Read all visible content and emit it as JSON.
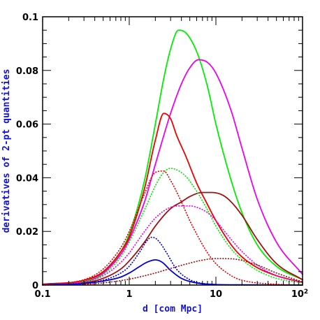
{
  "chart_data": {
    "type": "line",
    "xlabel": "d [com Mpc]",
    "ylabel": "derivatives of 2-pt quantities",
    "label_color": "#1010e0",
    "xscale": "log",
    "xlim": [
      0.1,
      100
    ],
    "ylim": [
      0,
      0.1
    ],
    "xticks": [
      {
        "value": 0.1,
        "label": "0.1"
      },
      {
        "value": 1,
        "label": "1"
      },
      {
        "value": 10,
        "label": "10"
      },
      {
        "value": 100,
        "label": "10",
        "sup": "2"
      }
    ],
    "yticks": [
      {
        "value": 0,
        "label": "0"
      },
      {
        "value": 0.02,
        "label": "0.02"
      },
      {
        "value": 0.04,
        "label": "0.04"
      },
      {
        "value": 0.06,
        "label": "0.06"
      },
      {
        "value": 0.08,
        "label": "0.08"
      },
      {
        "value": 0.1,
        "label": "0.1"
      }
    ],
    "grid": false,
    "series": [
      {
        "color": "#00ee00",
        "style": "solid",
        "x": [
          0.1,
          0.3,
          0.5,
          0.8,
          1.0,
          1.5,
          2.0,
          2.5,
          3.0,
          3.7,
          4.5,
          6.0,
          8.0,
          10,
          15,
          20,
          30,
          50,
          100
        ],
        "y": [
          0.0002,
          0.0012,
          0.0042,
          0.0125,
          0.019,
          0.039,
          0.06,
          0.077,
          0.088,
          0.095,
          0.094,
          0.087,
          0.074,
          0.06,
          0.039,
          0.027,
          0.015,
          0.007,
          0.002
        ]
      },
      {
        "color": "#ee00ee",
        "style": "solid",
        "x": [
          0.1,
          0.3,
          0.5,
          0.8,
          1.0,
          1.5,
          2.0,
          3.0,
          4.0,
          5.0,
          6.3,
          8.0,
          10,
          15,
          20,
          30,
          50,
          100
        ],
        "y": [
          0.0003,
          0.0015,
          0.0045,
          0.0115,
          0.017,
          0.031,
          0.045,
          0.064,
          0.075,
          0.081,
          0.084,
          0.083,
          0.079,
          0.065,
          0.051,
          0.032,
          0.016,
          0.004
        ]
      },
      {
        "color": "#ee0000",
        "style": "solid",
        "x": [
          0.1,
          0.3,
          0.5,
          0.8,
          1.0,
          1.5,
          2.0,
          2.5,
          3.0,
          3.5,
          4.5,
          6.0,
          8.0,
          10,
          15,
          20,
          30,
          50,
          100
        ],
        "y": [
          0.0003,
          0.0018,
          0.005,
          0.0125,
          0.018,
          0.036,
          0.054,
          0.064,
          0.062,
          0.056,
          0.048,
          0.038,
          0.03,
          0.024,
          0.015,
          0.0105,
          0.0065,
          0.0035,
          0.001
        ]
      },
      {
        "color": "#a01010",
        "style": "solid",
        "x": [
          0.1,
          0.3,
          0.5,
          0.8,
          1.0,
          1.5,
          2.0,
          3.0,
          4.0,
          5.0,
          7.0,
          9.0,
          12,
          15,
          20,
          30,
          50,
          100
        ],
        "y": [
          0.0001,
          0.0008,
          0.0025,
          0.006,
          0.009,
          0.016,
          0.022,
          0.0285,
          0.031,
          0.033,
          0.0345,
          0.0345,
          0.0335,
          0.031,
          0.026,
          0.017,
          0.008,
          0.002
        ]
      },
      {
        "color": "#0000dd",
        "style": "solid",
        "x": [
          0.1,
          0.3,
          0.5,
          0.8,
          1.0,
          1.3,
          1.6,
          2.0,
          2.4,
          3.0,
          4.0,
          6.0,
          10,
          20,
          100
        ],
        "y": [
          0.0001,
          0.0006,
          0.0015,
          0.003,
          0.0045,
          0.0068,
          0.0085,
          0.0094,
          0.0085,
          0.0055,
          0.0025,
          0.0008,
          0.0002,
          0.0001,
          0.0
        ]
      },
      {
        "color": "#00ee00",
        "style": "dotted",
        "x": [
          0.1,
          0.3,
          0.5,
          0.8,
          1.0,
          1.5,
          2.0,
          2.5,
          3.0,
          3.5,
          4.5,
          6.0,
          8.0,
          10,
          15,
          20,
          30,
          50,
          100
        ],
        "y": [
          0.0002,
          0.0015,
          0.004,
          0.0105,
          0.016,
          0.028,
          0.037,
          0.042,
          0.0435,
          0.043,
          0.0405,
          0.035,
          0.028,
          0.022,
          0.0135,
          0.0095,
          0.0055,
          0.0025,
          0.0008
        ]
      },
      {
        "color": "#ee00ee",
        "style": "dotted",
        "x": [
          0.1,
          0.3,
          0.5,
          0.8,
          1.0,
          1.5,
          2.0,
          3.0,
          4.0,
          5.0,
          6.0,
          8.0,
          10,
          15,
          20,
          30,
          50,
          100
        ],
        "y": [
          0.0002,
          0.0012,
          0.0035,
          0.0085,
          0.012,
          0.02,
          0.025,
          0.029,
          0.0295,
          0.0295,
          0.029,
          0.027,
          0.024,
          0.017,
          0.0125,
          0.0075,
          0.0035,
          0.001
        ]
      },
      {
        "color": "#ee0000",
        "style": "dotted",
        "x": [
          0.1,
          0.3,
          0.5,
          0.8,
          1.0,
          1.5,
          2.0,
          2.5,
          3.0,
          4.0,
          5.0,
          6.0,
          8.0,
          10,
          15,
          20,
          50,
          100
        ],
        "y": [
          0.0003,
          0.002,
          0.006,
          0.014,
          0.02,
          0.034,
          0.042,
          0.0425,
          0.039,
          0.031,
          0.024,
          0.019,
          0.012,
          0.008,
          0.0035,
          0.0018,
          0.0003,
          0.0
        ]
      },
      {
        "color": "#a01010",
        "style": "dotted",
        "x": [
          0.1,
          0.3,
          0.5,
          1.0,
          2.0,
          3.0,
          5.0,
          7.0,
          10,
          15,
          20,
          30,
          50,
          100
        ],
        "y": [
          0.0,
          0.0003,
          0.0008,
          0.0022,
          0.0045,
          0.0062,
          0.0082,
          0.0093,
          0.0099,
          0.0098,
          0.0092,
          0.0075,
          0.0045,
          0.0012
        ]
      },
      {
        "color": "#0000dd",
        "style": "dotted",
        "x": [
          0.1,
          0.3,
          0.5,
          0.8,
          1.0,
          1.3,
          1.6,
          1.8,
          2.0,
          2.3,
          2.7,
          3.5,
          5.0,
          7.0,
          10,
          20,
          100
        ],
        "y": [
          0.0001,
          0.0006,
          0.0018,
          0.0045,
          0.007,
          0.012,
          0.0165,
          0.0178,
          0.0175,
          0.0155,
          0.012,
          0.006,
          0.002,
          0.0006,
          0.0002,
          0.0,
          0.0
        ]
      }
    ]
  }
}
